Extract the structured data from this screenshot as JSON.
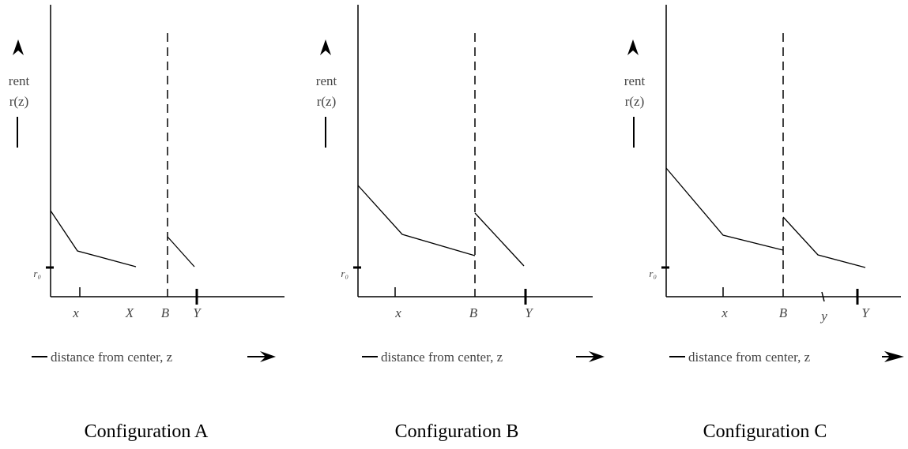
{
  "panels": [
    {
      "caption": "Configuration A",
      "y_label_line1": "rent",
      "y_label_line2": "r(z)",
      "x_axis_label": "distance from center, z",
      "r0_label": "r₀",
      "tick_labels": [
        "x",
        "X",
        "B",
        "Y"
      ]
    },
    {
      "caption": "Configuration B",
      "y_label_line1": "rent",
      "y_label_line2": "r(z)",
      "x_axis_label": "distance from center, z",
      "r0_label": "r₀",
      "tick_labels": [
        "x",
        "B",
        "Y"
      ]
    },
    {
      "caption": "Configuration C",
      "y_label_line1": "rent",
      "y_label_line2": "r(z)",
      "x_axis_label": "distance from center, z",
      "r0_label": "r₀",
      "tick_labels": [
        "x",
        "B",
        "y",
        "Y"
      ]
    }
  ]
}
